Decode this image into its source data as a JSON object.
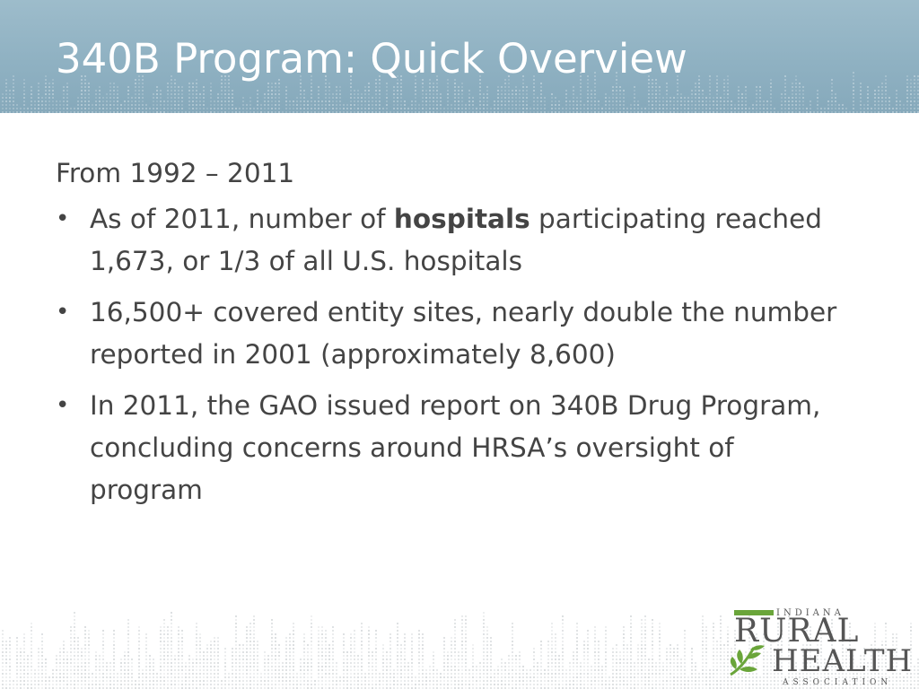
{
  "slide": {
    "title": "340B Program: Quick Overview",
    "intro": "From 1992 – 2011",
    "bullets": [
      {
        "before": "As of 2011, number of ",
        "bold": "hospitals",
        "after": " participating reached 1,673, or 1/3 of all U.S. hospitals"
      },
      {
        "text": "16,500+ covered entity sites, nearly double the number reported in 2001 (approximately 8,600)"
      },
      {
        "text": "In 2011, the GAO issued report on 340B Drug Program, concluding concerns around HRSA’s oversight of program"
      }
    ],
    "bullet_symbol": "•"
  },
  "logo": {
    "line1": "INDIANA",
    "line2": "RURAL",
    "line3": "HEALTH",
    "line4": "ASSOCIATION"
  },
  "colors": {
    "header": "#8fb1c2",
    "title_text": "#ffffff",
    "body_text": "#444444",
    "logo_green": "#6aa53a"
  }
}
